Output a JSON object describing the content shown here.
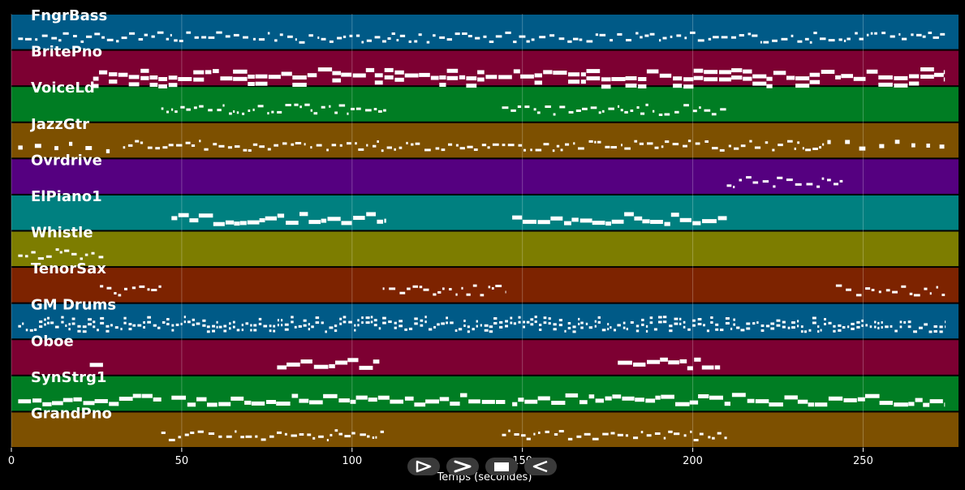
{
  "colors": {
    "background": "#000000",
    "note": "#ffffff",
    "grid": "#ffffff",
    "track_palette": [
      "#005a87",
      "#7d0032",
      "#007d23",
      "#7d5000",
      "#550080",
      "#008080",
      "#7d7d00",
      "#7d2300"
    ]
  },
  "chart_data": {
    "type": "piano-roll",
    "xlabel": "Temps (secondes)",
    "xlim": [
      0,
      278
    ],
    "xticks": [
      0,
      50,
      100,
      150,
      200,
      250
    ],
    "grid": true,
    "tracks": [
      {
        "name": "FngrBass",
        "color": "#005a87",
        "activity": [
          [
            2,
            274
          ]
        ]
      },
      {
        "name": "BritePno",
        "color": "#7d0032",
        "activity": [
          [
            24,
            274
          ]
        ]
      },
      {
        "name": "VoiceLd",
        "color": "#007d23",
        "activity": [
          [
            44,
            110
          ],
          [
            144,
            210
          ]
        ]
      },
      {
        "name": "JazzGtr",
        "color": "#7d5000",
        "activity": [
          [
            2,
            274
          ]
        ]
      },
      {
        "name": "Ovrdrive",
        "color": "#550080",
        "activity": [
          [
            210,
            244
          ]
        ]
      },
      {
        "name": "ElPiano1",
        "color": "#008080",
        "activity": [
          [
            47,
            110
          ],
          [
            147,
            210
          ]
        ]
      },
      {
        "name": "Whistle",
        "color": "#7d7d00",
        "activity": [
          [
            2,
            27
          ]
        ]
      },
      {
        "name": "TenorSax",
        "color": "#7d2300",
        "activity": [
          [
            26,
            44
          ],
          [
            109,
            145
          ],
          [
            242,
            274
          ]
        ]
      },
      {
        "name": "GM Drums",
        "color": "#005a87",
        "activity": [
          [
            2,
            274
          ]
        ]
      },
      {
        "name": "Oboe",
        "color": "#7d0032",
        "activity": [
          [
            23,
            27
          ],
          [
            78,
            108
          ],
          [
            178,
            208
          ]
        ]
      },
      {
        "name": "SynStrg1",
        "color": "#007d23",
        "activity": [
          [
            2,
            44
          ],
          [
            47,
            145
          ],
          [
            147,
            274
          ]
        ]
      },
      {
        "name": "GrandPno",
        "color": "#7d5000",
        "activity": [
          [
            44,
            110
          ],
          [
            144,
            210
          ]
        ]
      }
    ]
  },
  "controls": [
    {
      "label": "play",
      "icon": "play-outline-icon"
    },
    {
      "label": "forward",
      "icon": "chevron-right-icon"
    },
    {
      "label": "stop",
      "icon": "stop-icon"
    },
    {
      "label": "back",
      "icon": "triangle-left-icon"
    }
  ]
}
